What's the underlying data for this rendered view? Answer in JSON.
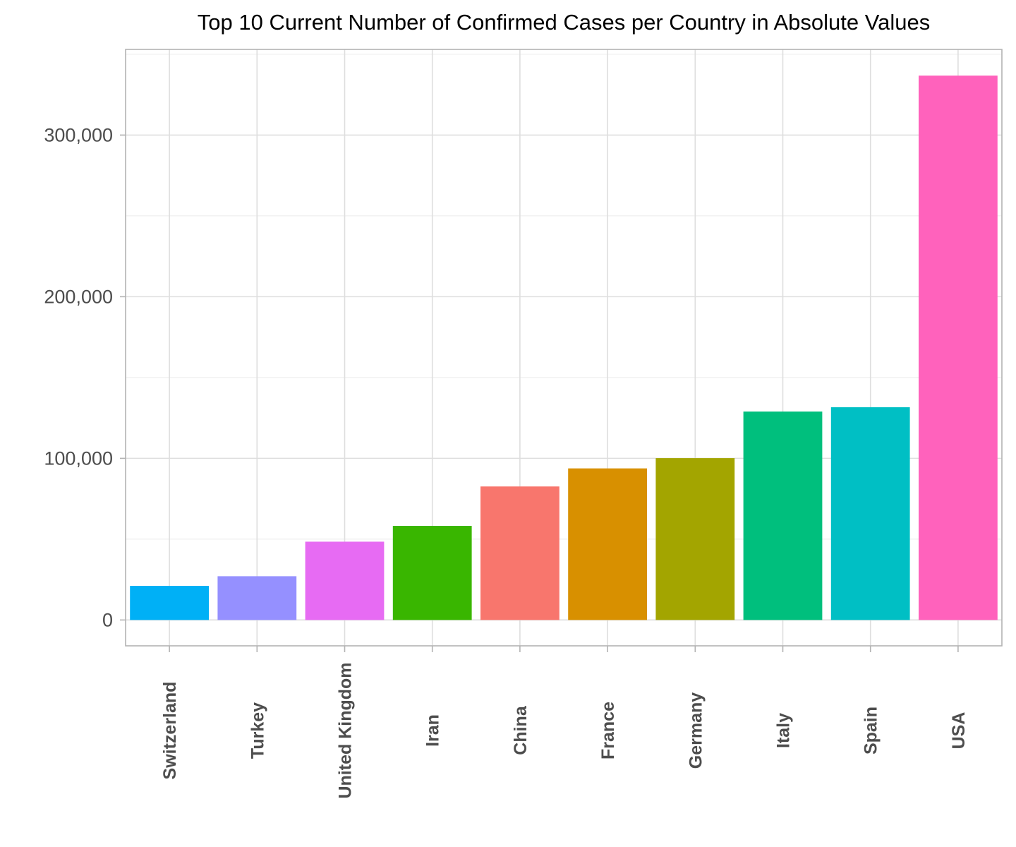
{
  "chart_data": {
    "type": "bar",
    "title": "Top 10 Current Number of Confirmed Cases per Country in Absolute Values",
    "xlabel": "",
    "ylabel": "",
    "categories": [
      "Switzerland",
      "Turkey",
      "United Kingdom",
      "Iran",
      "China",
      "France",
      "Germany",
      "Italy",
      "Spain",
      "USA"
    ],
    "values": [
      21100,
      27069,
      48440,
      58226,
      82602,
      93780,
      100123,
      128948,
      131646,
      336800
    ],
    "colors": [
      "#00B0F6",
      "#9590FF",
      "#E76BF3",
      "#39B600",
      "#F8766D",
      "#D89000",
      "#A3A500",
      "#00BF7D",
      "#00BFC4",
      "#FF62BC"
    ],
    "ylim": [
      -16000,
      353000
    ],
    "yticks": [
      0,
      100000,
      200000,
      300000
    ],
    "ytick_labels": [
      "0",
      "100,000",
      "200,000",
      "300,000"
    ],
    "grid": true,
    "legend": "none"
  }
}
